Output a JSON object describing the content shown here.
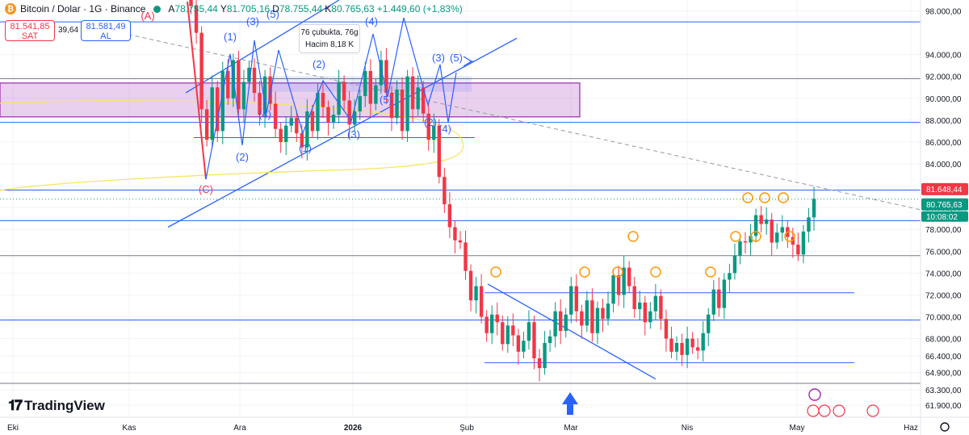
{
  "header": {
    "symbol": "Bitcoin / Dolar · 1G · Binance",
    "o_label": "A",
    "o_val": "78.755,44",
    "h_label": "Y",
    "h_val": "81.705,16",
    "l_label": "D",
    "l_val": "78.755,44",
    "c_label": "K",
    "c_val": "80.765,63",
    "change": "+1.449,60 (+1,83%)"
  },
  "trade": {
    "sell_price": "81.541,85",
    "sell_label": "SAT",
    "spread": "39,64",
    "buy_price": "81.581,49",
    "buy_label": "AL"
  },
  "tooltip": {
    "line1": "76 çubukta, 76g",
    "line2": "Hacim 8,18 K"
  },
  "logo": {
    "text": "TradingView"
  },
  "price_tags": {
    "last": "81.648,44",
    "current": "80.765,63",
    "countdown": "10:08:02"
  },
  "colors": {
    "up": "#089981",
    "down": "#f23645",
    "wave": "#2962ff",
    "zone": "#9c27b0",
    "marker": "#ff9800",
    "ellipse": "#f5e663",
    "corrective": "#f23645"
  },
  "icons": [
    "bitcoin-logo",
    "lightning-icon",
    "flag-icon",
    "up-arrow-icon",
    "settings-icon"
  ],
  "chart_data": {
    "type": "candlestick",
    "title": "Bitcoin / Dolar · 1G · Binance",
    "x_ticks": [
      "Eki",
      "Kas",
      "Ara",
      "2026",
      "Şub",
      "Mar",
      "Nis",
      "May",
      "Haz"
    ],
    "y_ticks": [
      "98.000,00",
      "94.000,00",
      "92.000,00",
      "90.000,00",
      "88.000,00",
      "86.000,00",
      "84.000,00",
      "82.000,00",
      "80.000,00",
      "78.000,00",
      "76.000,00",
      "74.000,00",
      "72.000,00",
      "70.000,00",
      "68.000,00",
      "66.400,00",
      "64.900,00",
      "63.300,00",
      "61.900,00"
    ],
    "ylim": [
      60800,
      99000
    ],
    "horizontal_levels": [
      97000,
      91800,
      87800,
      86400,
      81600,
      78800,
      75600,
      72200,
      69700,
      65800,
      63900
    ],
    "wave_labels": [
      "(A)",
      "(1)",
      "(2)",
      "(3)",
      "(4)",
      "(5)",
      "(C)",
      "(1)",
      "(2)",
      "(3)",
      "(4)",
      "(5)",
      "(3)",
      "(5)",
      "(2)",
      "(4)"
    ],
    "closes": [
      108000,
      98500,
      96000,
      89000,
      86200,
      91000,
      87000,
      92500,
      90000,
      93500,
      89000,
      91500,
      92800,
      90500,
      88500,
      92000,
      89500,
      87200,
      86000,
      87500,
      88200,
      86800,
      85500,
      88800,
      87000,
      90500,
      89200,
      87800,
      88500,
      91500,
      89800,
      87600,
      88800,
      90200,
      92500,
      89500,
      91200,
      93500,
      90500,
      88200,
      90800,
      87000,
      92000,
      89000,
      91000,
      88600,
      86200,
      87500,
      82800,
      80300,
      78200,
      77000,
      76800,
      74200,
      71500,
      72800,
      70000,
      68500,
      70200,
      69500,
      67500,
      69200,
      68300,
      66800,
      67800,
      69500,
      66200,
      65300,
      67600,
      68200,
      70500,
      68700,
      70200,
      72800,
      70500,
      69200,
      71500,
      68500,
      70800,
      69800,
      71200,
      73800,
      72000,
      74500,
      72800,
      70700,
      71300,
      69500,
      70500,
      71900,
      69800,
      68000,
      66800,
      67600,
      66500,
      68000,
      67200,
      66900,
      68500,
      70200,
      72500,
      70800,
      73400,
      74000,
      75600,
      76900,
      76800,
      77400,
      79300,
      78500,
      78900,
      76800,
      77700,
      78200,
      77300,
      76600,
      75700,
      77800,
      79100,
      80800
    ]
  }
}
